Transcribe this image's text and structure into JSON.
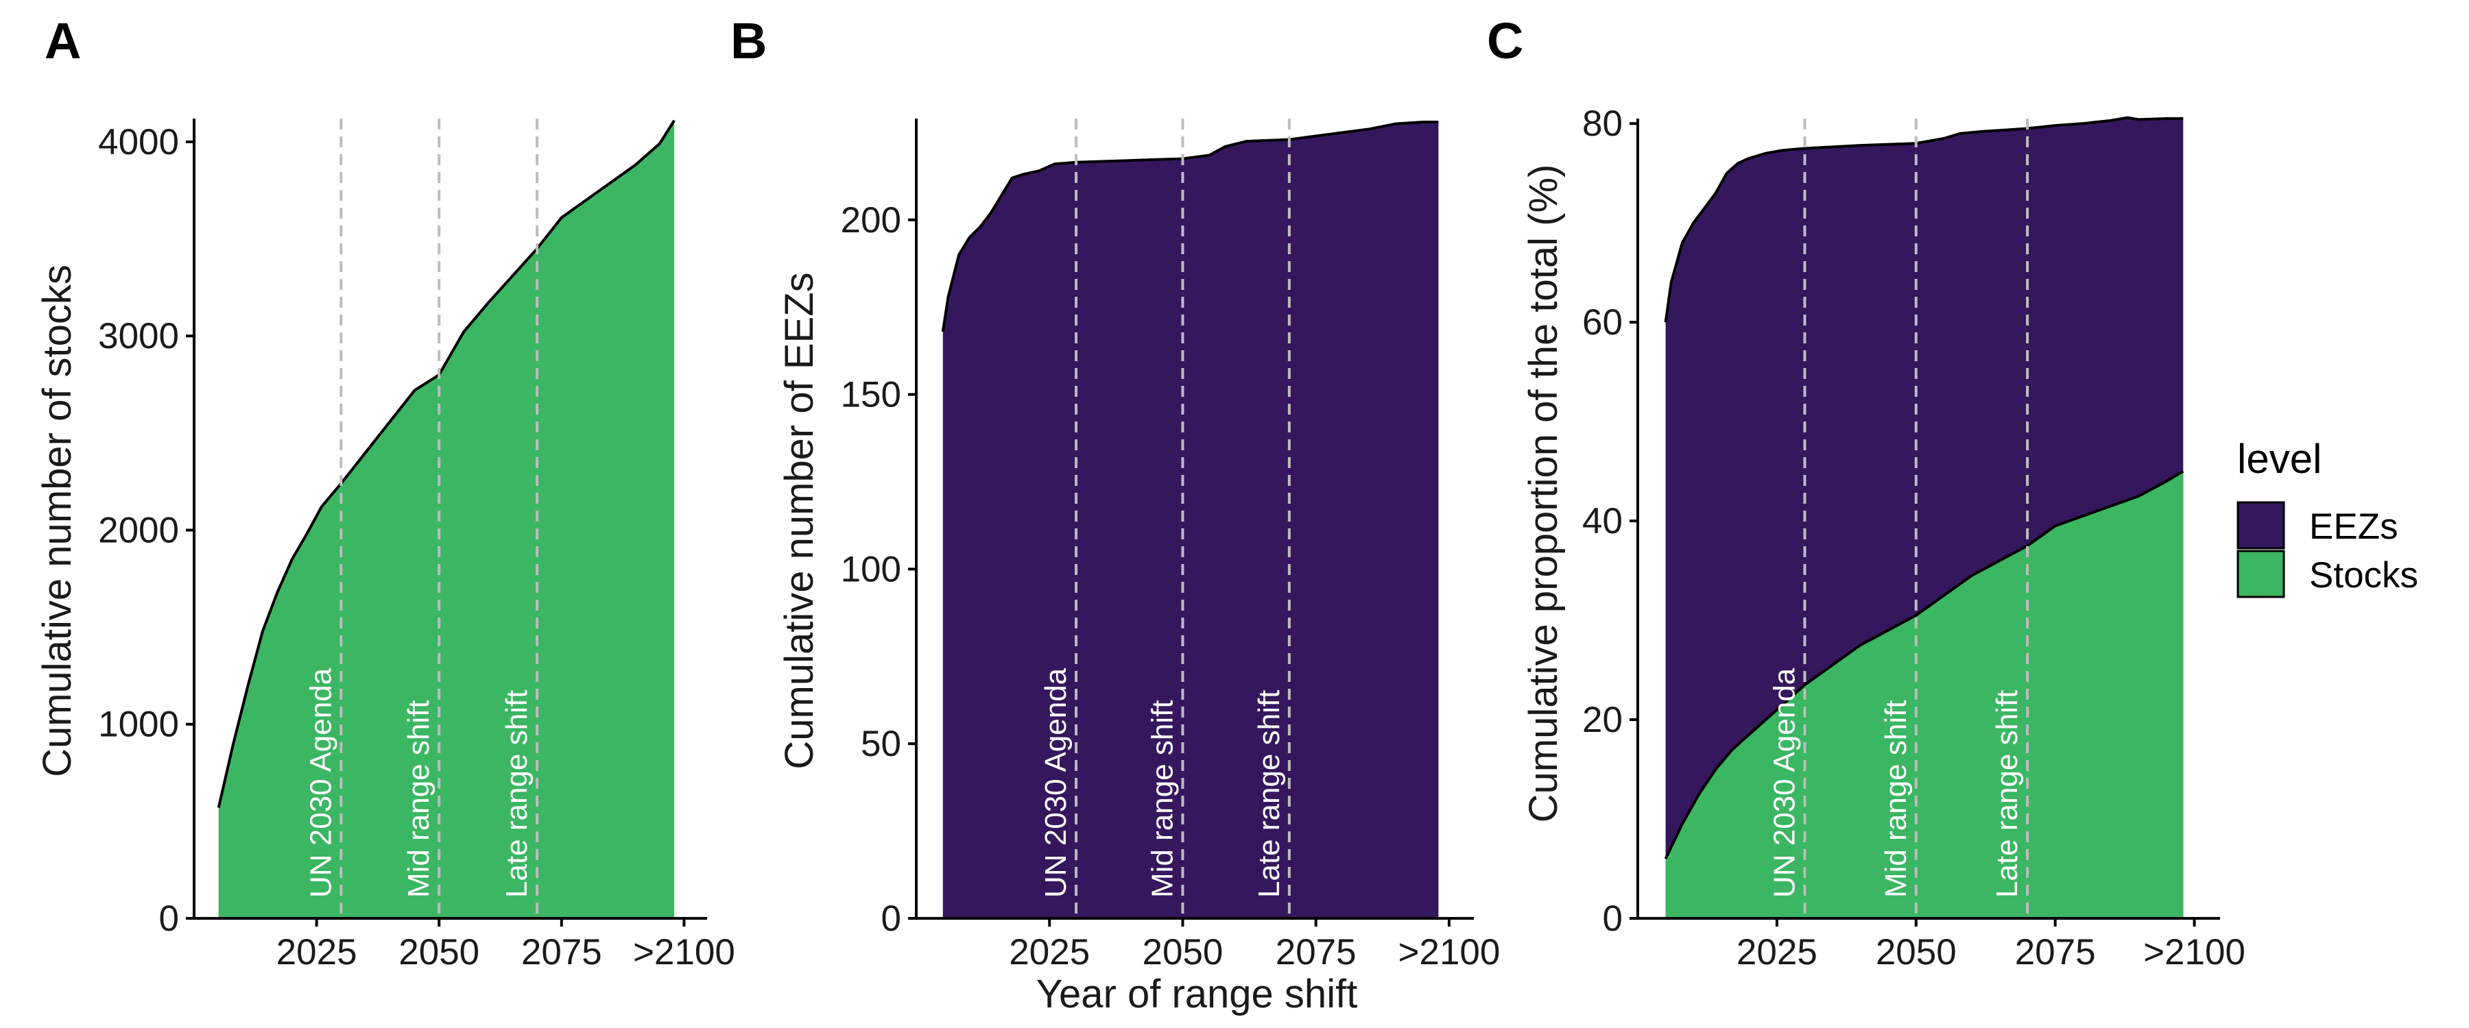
{
  "colors": {
    "stocks": "#3bb662",
    "eezs": "#35175e",
    "guide": "#bdbdbd",
    "outline": "#000000"
  },
  "x_axis_title": "Year of range shift",
  "x_ticks": [
    "2025",
    "2050",
    "2075",
    ">2100"
  ],
  "annotations": [
    {
      "label": "UN 2030 Agenda",
      "x": 2030
    },
    {
      "label": "Mid range shift",
      "x": 2050
    },
    {
      "label": "Late range shift",
      "x": 2070
    }
  ],
  "legend": {
    "title": "level",
    "items": [
      {
        "label": "EEZs",
        "color": "#35175e"
      },
      {
        "label": "Stocks",
        "color": "#3bb662"
      }
    ]
  },
  "chart_data": [
    {
      "panel": "A",
      "type": "area",
      "ylabel": "Cumulative number of stocks",
      "xlim": [
        2000,
        2104
      ],
      "ylim": [
        0,
        4120
      ],
      "yticks": [
        0,
        1000,
        2000,
        3000,
        4000
      ],
      "series": [
        {
          "name": "Stocks",
          "x": [
            2005,
            2008,
            2011,
            2014,
            2017,
            2020,
            2023,
            2026,
            2030,
            2035,
            2040,
            2045,
            2050,
            2055,
            2060,
            2065,
            2070,
            2075,
            2080,
            2085,
            2090,
            2095,
            2098
          ],
          "y": [
            570,
            900,
            1200,
            1480,
            1680,
            1850,
            1980,
            2120,
            2240,
            2400,
            2560,
            2720,
            2800,
            3020,
            3170,
            3310,
            3450,
            3610,
            3700,
            3790,
            3880,
            3990,
            4110
          ]
        }
      ]
    },
    {
      "panel": "B",
      "type": "area",
      "ylabel": "Cumulative number of EEZs",
      "xlim": [
        2000,
        2104
      ],
      "ylim": [
        0,
        229
      ],
      "yticks": [
        0,
        50,
        100,
        150,
        200
      ],
      "series": [
        {
          "name": "EEZs",
          "x": [
            2005,
            2006,
            2008,
            2010,
            2012,
            2014,
            2016,
            2018,
            2020,
            2023,
            2026,
            2030,
            2040,
            2050,
            2055,
            2058,
            2062,
            2070,
            2075,
            2080,
            2085,
            2090,
            2095,
            2098
          ],
          "y": [
            168,
            178,
            190,
            195,
            198,
            202,
            207,
            212,
            213,
            214,
            216,
            216.5,
            217,
            217.5,
            218.5,
            221,
            222.5,
            223,
            224,
            225,
            226,
            227.5,
            228,
            228
          ]
        }
      ]
    },
    {
      "panel": "C",
      "type": "area",
      "ylabel": "Cumulative proportion of the total (%)",
      "xlim": [
        2000,
        2104
      ],
      "ylim": [
        0,
        80.5
      ],
      "yticks": [
        0,
        20,
        40,
        60,
        80
      ],
      "series": [
        {
          "name": "Stocks",
          "x": [
            2005,
            2008,
            2011,
            2014,
            2017,
            2020,
            2023,
            2026,
            2030,
            2035,
            2040,
            2045,
            2050,
            2055,
            2060,
            2065,
            2070,
            2075,
            2080,
            2085,
            2090,
            2095,
            2098
          ],
          "y": [
            6,
            9.5,
            12.5,
            15,
            17,
            18.5,
            20,
            21.5,
            23.5,
            25.5,
            27.5,
            29,
            30.5,
            32.5,
            34.5,
            36,
            37.5,
            39.5,
            40.5,
            41.5,
            42.5,
            44,
            45
          ]
        },
        {
          "name": "EEZs",
          "x": [
            2005,
            2006,
            2008,
            2010,
            2012,
            2014,
            2016,
            2018,
            2020,
            2023,
            2026,
            2030,
            2040,
            2050,
            2055,
            2058,
            2062,
            2070,
            2075,
            2080,
            2085,
            2088,
            2090,
            2095,
            2098
          ],
          "y": [
            60,
            64,
            68,
            70,
            71.5,
            73,
            75,
            76,
            76.5,
            77,
            77.3,
            77.5,
            77.8,
            78,
            78.5,
            79,
            79.2,
            79.5,
            79.8,
            80,
            80.3,
            80.6,
            80.4,
            80.5,
            80.5
          ]
        }
      ]
    }
  ]
}
